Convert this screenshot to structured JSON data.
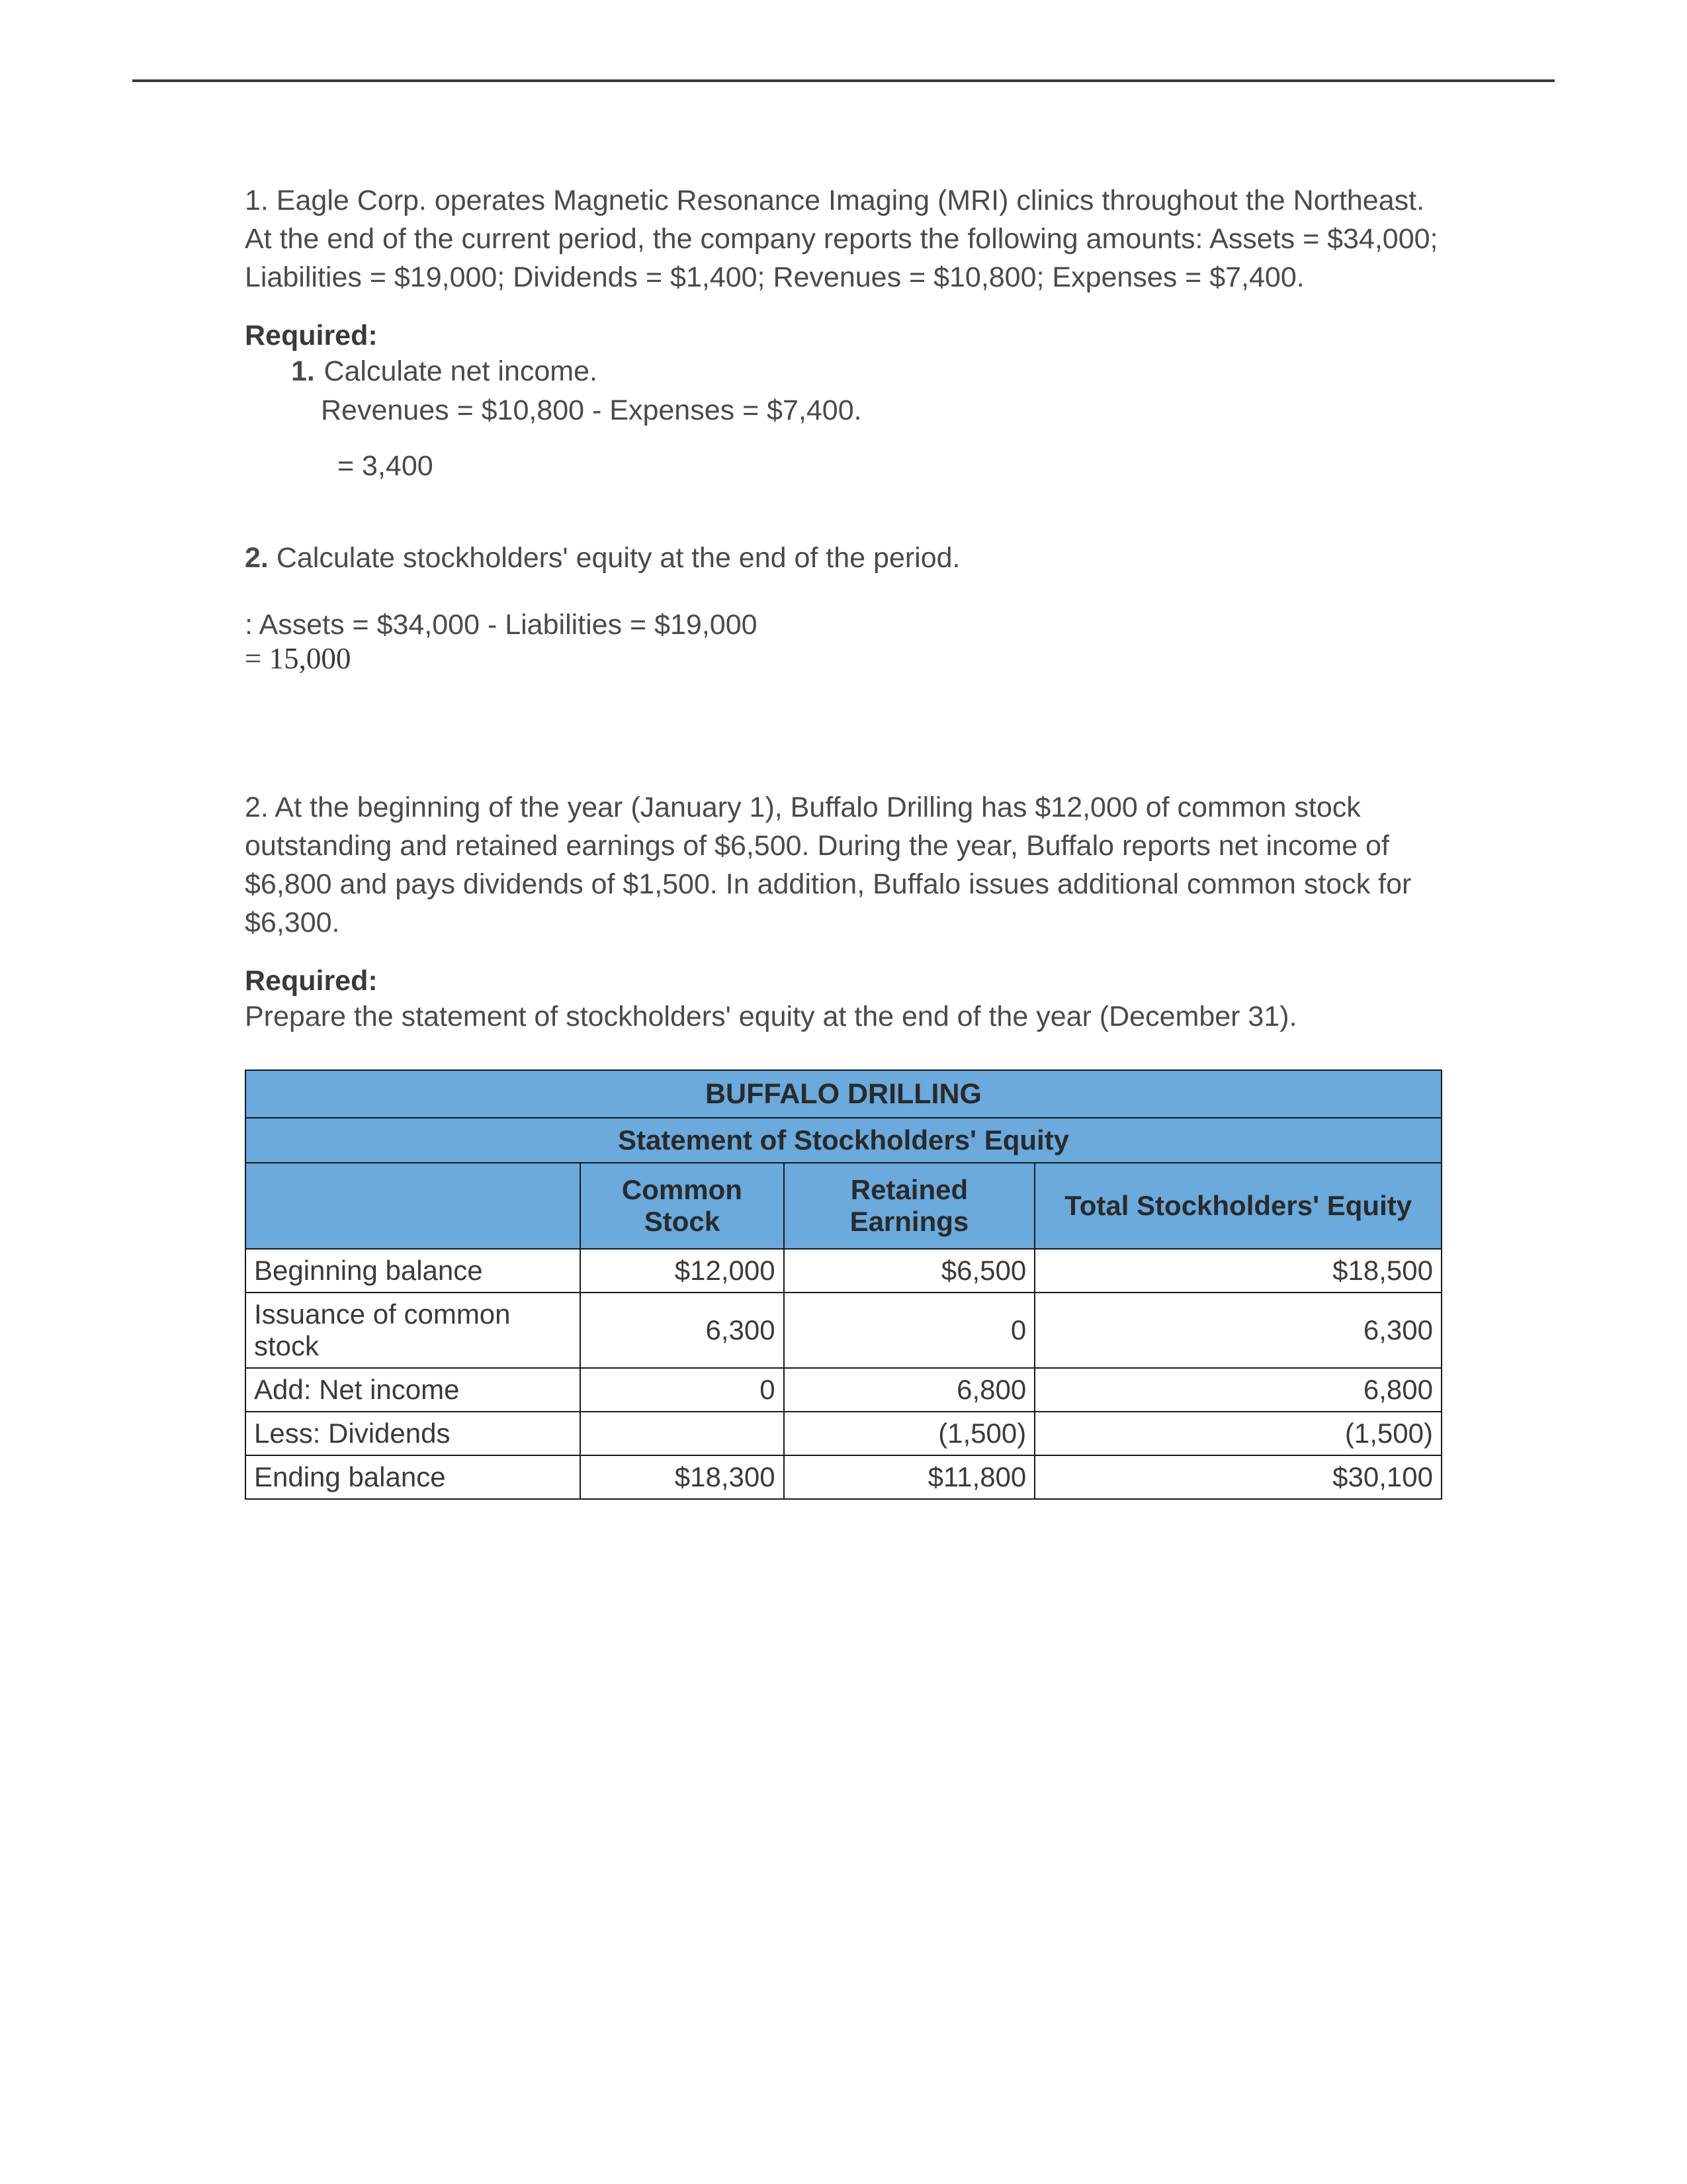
{
  "q1": {
    "intro": "1. Eagle Corp. operates Magnetic Resonance Imaging (MRI) clinics throughout the Northeast. At the end of the current period, the company reports the following amounts: Assets = $34,000; Liabilities = $19,000; Dividends = $1,400; Revenues = $10,800; Expenses = $7,400.",
    "required_label": "Required:",
    "part1_num": "1.",
    "part1_text": "Calculate net income.",
    "part1_calc": "Revenues = $10,800 - Expenses = $7,400.",
    "part1_answer": " = 3,400",
    "part2_num": "2.",
    "part2_text": "Calculate stockholders' equity at the end of the period.",
    "part2_calc": ": Assets = $34,000 - Liabilities = $19,000",
    "part2_answer": "= 15,000"
  },
  "q2": {
    "intro": "2. At the beginning of the year (January 1), Buffalo Drilling has $12,000 of common stock outstanding and retained earnings of $6,500. During the year, Buffalo reports net income of $6,800 and pays dividends of $1,500. In addition, Buffalo issues additional common stock for $6,300.",
    "required_label": "Required:",
    "prepare": "Prepare the statement of stockholders' equity at the end of the year (December 31)."
  },
  "table": {
    "company": "BUFFALO DRILLING",
    "statement_title": "Statement of Stockholders' Equity",
    "columns": [
      "",
      "Common Stock",
      "Retained Earnings",
      "Total Stockholders' Equity"
    ],
    "rows": [
      {
        "label": "Beginning balance",
        "common": "$12,000",
        "retained": "$6,500",
        "total": "$18,500"
      },
      {
        "label": "Issuance of common stock",
        "common": "6,300",
        "retained": "0",
        "total": "6,300"
      },
      {
        "label": "Add: Net income",
        "common": "0",
        "retained": "6,800",
        "total": "6,800"
      },
      {
        "label": "Less: Dividends",
        "common": "",
        "retained": "(1,500)",
        "total": "(1,500)"
      },
      {
        "label": "Ending balance",
        "common": "$18,300",
        "retained": "$11,800",
        "total": "$30,100"
      }
    ],
    "header_bg": "#6aaadc",
    "border_color": "#1a1a1a"
  }
}
